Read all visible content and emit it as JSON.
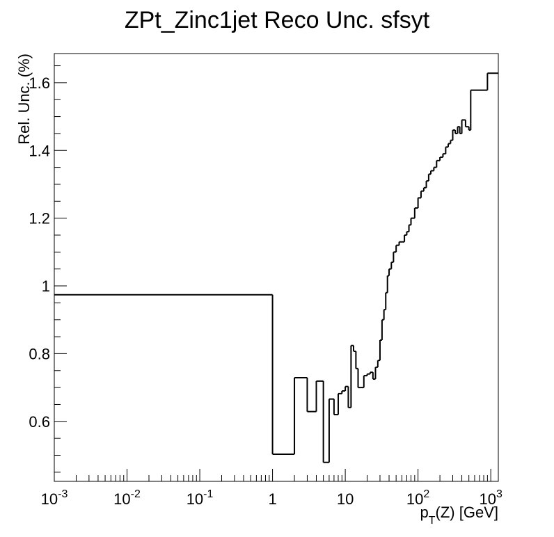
{
  "chart_data": {
    "type": "histogram",
    "title": "ZPt_Zinc1jet Reco Unc. sfsyt",
    "y_label": "Rel. Unc. (%)",
    "x_label": {
      "text": "p",
      "sub": "T",
      "rest": "(Z) [GeV]"
    },
    "color": "#000000",
    "x_log": true,
    "xlim": [
      0.001,
      1270
    ],
    "ylim": [
      0.423,
      1.686
    ],
    "xticks": [
      {
        "value": 0.001,
        "label": "10",
        "sup": "-3"
      },
      {
        "value": 0.01,
        "label": "10",
        "sup": "-2"
      },
      {
        "value": 0.1,
        "label": "10",
        "sup": "-1"
      },
      1,
      10,
      {
        "value": 100,
        "label": "10",
        "sup": "2"
      },
      {
        "value": 1000,
        "label": "10",
        "sup": "3"
      }
    ],
    "yticks": [
      0.6,
      0.8,
      1,
      1.2,
      1.4,
      1.6
    ],
    "bins": [
      0.001,
      1,
      2,
      3,
      4,
      5,
      6,
      7,
      8,
      9,
      10,
      11,
      12,
      13,
      14,
      15,
      16,
      18,
      20,
      22,
      24,
      26,
      28,
      30,
      32,
      34,
      36,
      38,
      40,
      43,
      46,
      50,
      55,
      60,
      65,
      70,
      75,
      80,
      90,
      100,
      110,
      120,
      130,
      140,
      150,
      165,
      180,
      200,
      220,
      240,
      260,
      280,
      300,
      325,
      350,
      375,
      400,
      450,
      500,
      530,
      900,
      1270
    ],
    "values": [
      0.974,
      0.503,
      0.729,
      0.629,
      0.719,
      0.479,
      0.666,
      0.62,
      0.682,
      0.69,
      0.703,
      0.641,
      0.824,
      0.807,
      0.756,
      0.7,
      0.7,
      0.735,
      0.74,
      0.745,
      0.725,
      0.76,
      0.78,
      0.84,
      0.9,
      0.93,
      0.98,
      1.03,
      1.05,
      1.07,
      1.1,
      1.12,
      1.13,
      1.13,
      1.15,
      1.16,
      1.18,
      1.2,
      1.23,
      1.26,
      1.28,
      1.29,
      1.31,
      1.33,
      1.34,
      1.35,
      1.37,
      1.38,
      1.39,
      1.41,
      1.42,
      1.43,
      1.46,
      1.45,
      1.47,
      1.45,
      1.49,
      1.47,
      1.46,
      1.578,
      1.628
    ]
  }
}
